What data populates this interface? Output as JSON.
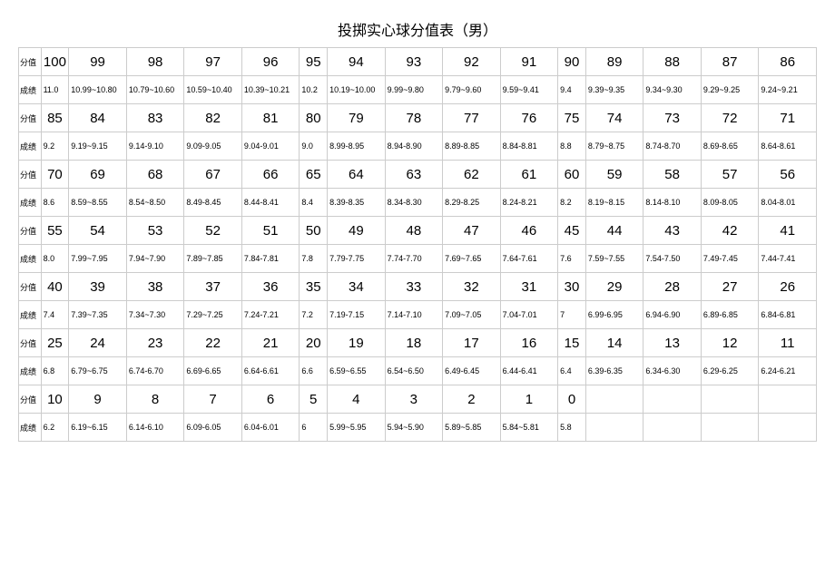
{
  "title": "投掷实心球分值表（男）",
  "labels": {
    "score": "分值",
    "grade": "成绩"
  },
  "rows": [
    {
      "scores": [
        "100",
        "99",
        "98",
        "97",
        "96",
        "95",
        "94",
        "93",
        "92",
        "91",
        "90",
        "89",
        "88",
        "87",
        "86"
      ],
      "grades": [
        "11.0",
        "10.99~10.80",
        "10.79~10.60",
        "10.59~10.40",
        "10.39~10.21",
        "10.2",
        "10.19~10.00",
        "9.99~9.80",
        "9.79~9.60",
        "9.59~9.41",
        "9.4",
        "9.39~9.35",
        "9.34~9.30",
        "9.29~9.25",
        "9.24~9.21"
      ]
    },
    {
      "scores": [
        "85",
        "84",
        "83",
        "82",
        "81",
        "80",
        "79",
        "78",
        "77",
        "76",
        "75",
        "74",
        "73",
        "72",
        "71"
      ],
      "grades": [
        "9.2",
        "9.19~9.15",
        "9.14-9.10",
        "9.09-9.05",
        "9.04-9.01",
        "9.0",
        "8.99-8.95",
        "8.94-8.90",
        "8.89-8.85",
        "8.84-8.81",
        "8.8",
        "8.79~8.75",
        "8.74-8.70",
        "8.69-8.65",
        "8.64-8.61"
      ]
    },
    {
      "scores": [
        "70",
        "69",
        "68",
        "67",
        "66",
        "65",
        "64",
        "63",
        "62",
        "61",
        "60",
        "59",
        "58",
        "57",
        "56"
      ],
      "grades": [
        "8.6",
        "8.59~8.55",
        "8.54~8.50",
        "8.49-8.45",
        "8.44-8.41",
        "8.4",
        "8.39-8.35",
        "8.34-8.30",
        "8.29-8.25",
        "8.24-8.21",
        "8.2",
        "8.19~8.15",
        "8.14-8.10",
        "8.09-8.05",
        "8.04-8.01"
      ]
    },
    {
      "scores": [
        "55",
        "54",
        "53",
        "52",
        "51",
        "50",
        "49",
        "48",
        "47",
        "46",
        "45",
        "44",
        "43",
        "42",
        "41"
      ],
      "grades": [
        "8.0",
        "7.99~7.95",
        "7.94~7.90",
        "7.89~7.85",
        "7.84-7.81",
        "7.8",
        "7.79-7.75",
        "7.74-7.70",
        "7.69~7.65",
        "7.64-7.61",
        "7.6",
        "7.59~7.55",
        "7.54-7.50",
        "7.49-7.45",
        "7.44-7.41"
      ]
    },
    {
      "scores": [
        "40",
        "39",
        "38",
        "37",
        "36",
        "35",
        "34",
        "33",
        "32",
        "31",
        "30",
        "29",
        "28",
        "27",
        "26"
      ],
      "grades": [
        "7.4",
        "7.39~7.35",
        "7.34~7.30",
        "7.29~7.25",
        "7.24-7.21",
        "7.2",
        "7.19-7.15",
        "7.14-7.10",
        "7.09~7.05",
        "7.04-7.01",
        "7",
        "6.99-6.95",
        "6.94-6.90",
        "6.89-6.85",
        "6.84-6.81"
      ]
    },
    {
      "scores": [
        "25",
        "24",
        "23",
        "22",
        "21",
        "20",
        "19",
        "18",
        "17",
        "16",
        "15",
        "14",
        "13",
        "12",
        "11"
      ],
      "grades": [
        "6.8",
        "6.79~6.75",
        "6.74-6.70",
        "6.69-6.65",
        "6.64-6.61",
        "6.6",
        "6.59~6.55",
        "6.54~6.50",
        "6.49-6.45",
        "6.44-6.41",
        "6.4",
        "6.39-6.35",
        "6.34-6.30",
        "6.29-6.25",
        "6.24-6.21"
      ]
    },
    {
      "scores": [
        "10",
        "9",
        "8",
        "7",
        "6",
        "5",
        "4",
        "3",
        "2",
        "1",
        "0",
        "",
        "",
        "",
        ""
      ],
      "grades": [
        "6.2",
        "6.19~6.15",
        "6.14-6.10",
        "6.09-6.05",
        "6.04-6.01",
        "6",
        "5.99~5.95",
        "5.94~5.90",
        "5.89~5.85",
        "5.84~5.81",
        "5.8",
        "",
        "",
        "",
        ""
      ]
    }
  ],
  "style": {
    "background_color": "#ffffff",
    "border_color": "#cccccc",
    "text_color": "#000000",
    "title_fontsize": 16,
    "score_fontsize": 15,
    "grade_fontsize": 9,
    "label_fontsize": 9
  }
}
